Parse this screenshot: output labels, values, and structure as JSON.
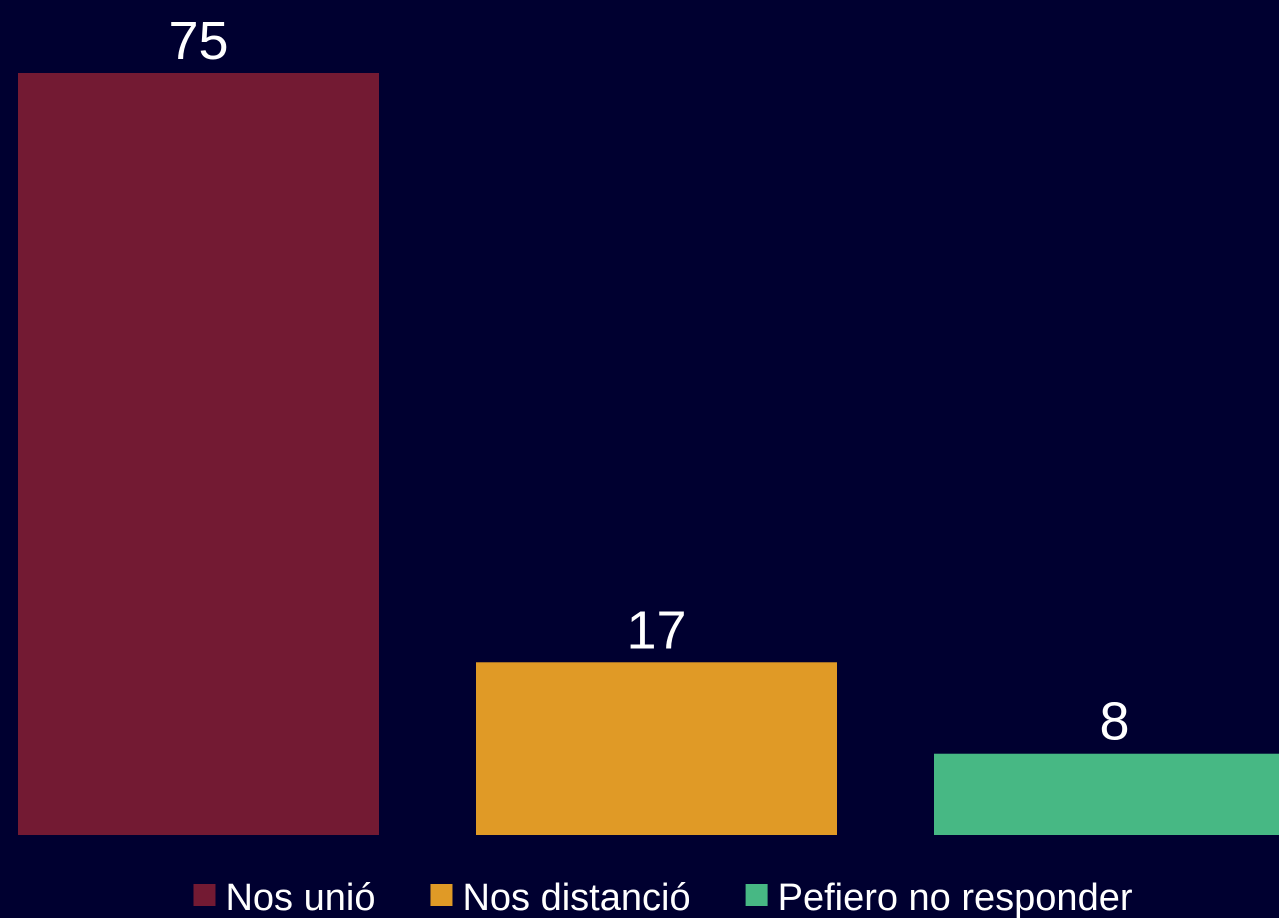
{
  "chart_data": {
    "type": "bar",
    "series": [
      {
        "name": "Nos unió",
        "color": "#731a33",
        "values": [
          75
        ]
      },
      {
        "name": "Nos distanció",
        "color": "#e09a26",
        "values": [
          17
        ]
      },
      {
        "name": "Pefiero no responder",
        "color": "#47b884",
        "values": [
          8
        ]
      }
    ],
    "legend": "bottom"
  }
}
